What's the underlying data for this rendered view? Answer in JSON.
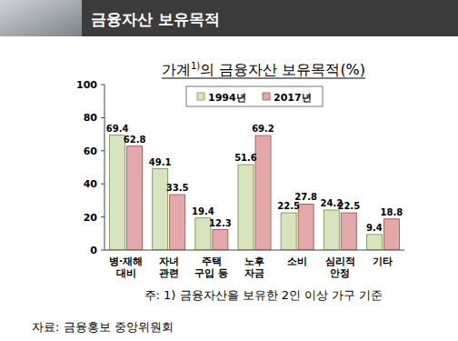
{
  "header": {
    "title": "금융자산 보유목적"
  },
  "chart_data": {
    "type": "bar",
    "title": "가계1)의 금융자산 보유목적(%)",
    "categories": [
      "병·재해\n대비",
      "자녀\n관련",
      "주택\n구입 등",
      "노후\n자금",
      "소비",
      "심리적\n안정",
      "기타"
    ],
    "series": [
      {
        "name": "1994년",
        "color": "#d7e4bd",
        "values": [
          69.4,
          49.1,
          19.4,
          51.6,
          22.5,
          24.2,
          9.4
        ]
      },
      {
        "name": "2017년",
        "color": "#e3a9a8",
        "values": [
          62.8,
          33.5,
          12.3,
          69.2,
          27.8,
          22.5,
          18.8
        ]
      }
    ],
    "ylim": [
      0,
      100
    ],
    "yticks": [
      0,
      20,
      40,
      60,
      80,
      100
    ],
    "grid": false,
    "legend": "top",
    "data_labels": true
  },
  "footnote": "주: 1) 금융자산을 보유한 2인 이상 가구 기준",
  "source": "자료: 금융홍보 중앙위원회"
}
